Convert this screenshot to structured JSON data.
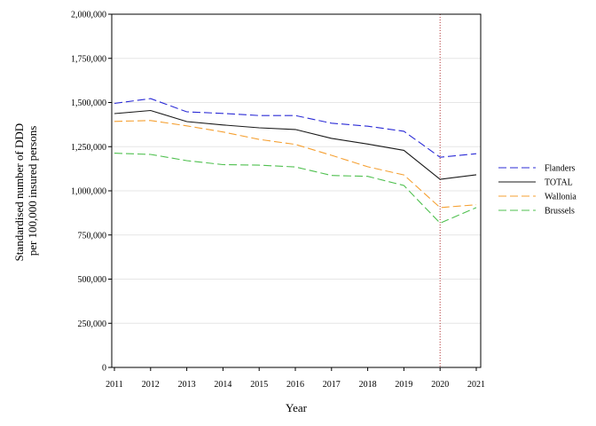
{
  "chart_data": {
    "type": "line",
    "title": "",
    "xlabel": "Year",
    "ylabel": [
      "Standardised number of DDD",
      "per 100,000 insured persons"
    ],
    "x": [
      2011,
      2012,
      2013,
      2014,
      2015,
      2016,
      2017,
      2018,
      2019,
      2020,
      2021
    ],
    "x_tick_labels": [
      "2011",
      "2012",
      "2013",
      "2014",
      "2015",
      "2016",
      "2017",
      "2018",
      "2019",
      "2020",
      "2021"
    ],
    "ylim": [
      0,
      2000000
    ],
    "y_ticks": [
      0,
      250000,
      500000,
      750000,
      1000000,
      1250000,
      1500000,
      1750000,
      2000000
    ],
    "y_tick_labels": [
      "0",
      "250,000",
      "500,000",
      "750,000",
      "1,000,000",
      "1,250,000",
      "1,500,000",
      "1,750,000",
      "2,000,000"
    ],
    "grid": "horizontal",
    "legend_position": "right",
    "reference_line": {
      "x": 2020,
      "color": "#b03030",
      "style": "dotted"
    },
    "series": [
      {
        "name": "Flanders",
        "color": "#2b2bd6",
        "dash": "dashed",
        "values": [
          1495000,
          1522000,
          1447000,
          1438000,
          1426000,
          1426000,
          1383000,
          1366000,
          1337000,
          1190000,
          1210000
        ]
      },
      {
        "name": "TOTAL",
        "color": "#1a1a1a",
        "dash": "solid",
        "values": [
          1437000,
          1455000,
          1392000,
          1373000,
          1357000,
          1347000,
          1297000,
          1265000,
          1229000,
          1065000,
          1091000
        ]
      },
      {
        "name": "Wallonia",
        "color": "#f5a032",
        "dash": "dashed",
        "values": [
          1393000,
          1398000,
          1368000,
          1333000,
          1291000,
          1263000,
          1201000,
          1136000,
          1090000,
          905000,
          921000
        ]
      },
      {
        "name": "Brussels",
        "color": "#4fc04f",
        "dash": "dashed",
        "values": [
          1213000,
          1206000,
          1171000,
          1148000,
          1145000,
          1135000,
          1087000,
          1082000,
          1030000,
          817000,
          905000
        ]
      }
    ]
  }
}
